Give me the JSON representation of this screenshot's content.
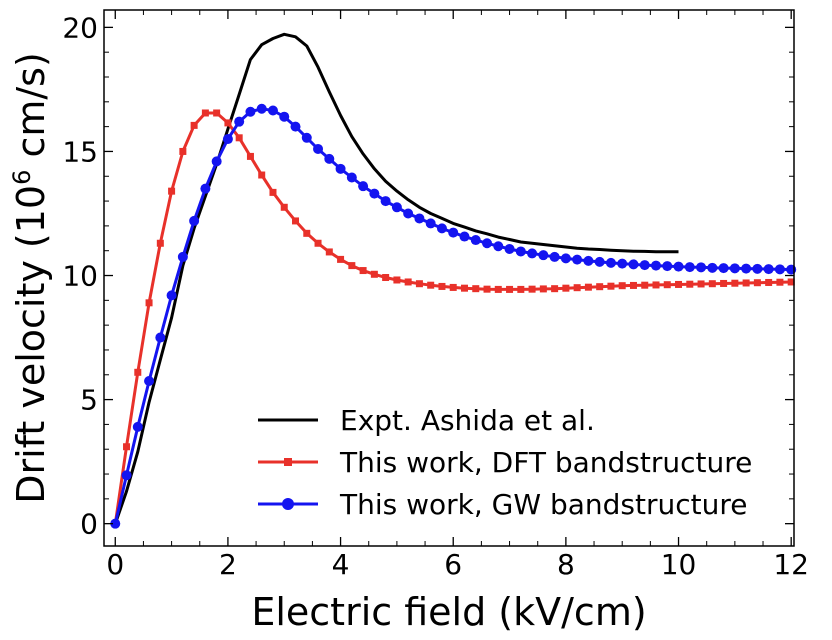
{
  "chart_data": {
    "type": "line",
    "title": "",
    "xlabel": "Electric field (kV/cm)",
    "ylabel_main": "Drift velocity (10",
    "ylabel_sup": "6",
    "ylabel_tail": " cm/s)",
    "xlim": [
      -0.2,
      12.05
    ],
    "ylim": [
      -0.9,
      20.7
    ],
    "xticks": [
      0,
      2,
      4,
      6,
      8,
      10,
      12
    ],
    "yticks": [
      0,
      5,
      10,
      15,
      20
    ],
    "grid": false,
    "legend_position": "lower-right",
    "series": [
      {
        "name": "Expt. Ashida et al.",
        "color": "#000000",
        "marker": "none",
        "x": [
          0,
          0.2,
          0.4,
          0.6,
          0.8,
          1.0,
          1.2,
          1.4,
          1.6,
          1.8,
          2.0,
          2.2,
          2.4,
          2.6,
          2.8,
          3.0,
          3.2,
          3.4,
          3.6,
          3.8,
          4.0,
          4.2,
          4.4,
          4.6,
          4.8,
          5.0,
          5.2,
          5.4,
          5.6,
          5.8,
          6.0,
          6.2,
          6.4,
          6.6,
          6.8,
          7.0,
          7.2,
          7.4,
          7.6,
          7.8,
          8.0,
          8.2,
          8.4,
          8.6,
          8.8,
          9.0,
          9.2,
          9.4,
          9.6,
          9.8,
          10.0
        ],
        "y": [
          0,
          1.3,
          2.9,
          4.9,
          6.6,
          8.3,
          10.4,
          11.9,
          13.2,
          14.5,
          15.9,
          17.3,
          18.7,
          19.3,
          19.55,
          19.72,
          19.62,
          19.25,
          18.4,
          17.4,
          16.45,
          15.6,
          14.9,
          14.3,
          13.8,
          13.4,
          13.05,
          12.75,
          12.5,
          12.3,
          12.1,
          11.95,
          11.8,
          11.68,
          11.55,
          11.45,
          11.35,
          11.3,
          11.25,
          11.2,
          11.15,
          11.1,
          11.07,
          11.05,
          11.02,
          11.0,
          10.98,
          10.97,
          10.96,
          10.96,
          10.96
        ]
      },
      {
        "name": "This work, DFT bandstructure",
        "color": "#e8312a",
        "marker": "square",
        "x": [
          0,
          0.2,
          0.4,
          0.6,
          0.8,
          1.0,
          1.2,
          1.4,
          1.6,
          1.8,
          2.0,
          2.2,
          2.4,
          2.6,
          2.8,
          3.0,
          3.2,
          3.4,
          3.6,
          3.8,
          4.0,
          4.2,
          4.4,
          4.6,
          4.8,
          5.0,
          5.2,
          5.4,
          5.6,
          5.8,
          6.0,
          6.2,
          6.4,
          6.6,
          6.8,
          7.0,
          7.2,
          7.4,
          7.6,
          7.8,
          8.0,
          8.2,
          8.4,
          8.6,
          8.8,
          9.0,
          9.2,
          9.4,
          9.6,
          9.8,
          10.0,
          10.2,
          10.4,
          10.6,
          10.8,
          11.0,
          11.2,
          11.4,
          11.6,
          11.8,
          12.0
        ],
        "y": [
          0,
          3.1,
          6.1,
          8.9,
          11.3,
          13.4,
          15.0,
          16.05,
          16.55,
          16.55,
          16.15,
          15.55,
          14.8,
          14.05,
          13.35,
          12.75,
          12.2,
          11.7,
          11.3,
          10.95,
          10.65,
          10.4,
          10.2,
          10.05,
          9.92,
          9.82,
          9.74,
          9.67,
          9.61,
          9.56,
          9.52,
          9.49,
          9.47,
          9.45,
          9.44,
          9.44,
          9.44,
          9.45,
          9.46,
          9.47,
          9.49,
          9.51,
          9.53,
          9.55,
          9.57,
          9.59,
          9.6,
          9.61,
          9.62,
          9.63,
          9.64,
          9.65,
          9.66,
          9.67,
          9.68,
          9.69,
          9.7,
          9.71,
          9.72,
          9.73,
          9.74
        ]
      },
      {
        "name": "This work, GW bandstructure",
        "color": "#1414f0",
        "marker": "circle",
        "x": [
          0,
          0.2,
          0.4,
          0.6,
          0.8,
          1.0,
          1.2,
          1.4,
          1.6,
          1.8,
          2.0,
          2.2,
          2.4,
          2.6,
          2.8,
          3.0,
          3.2,
          3.4,
          3.6,
          3.8,
          4.0,
          4.2,
          4.4,
          4.6,
          4.8,
          5.0,
          5.2,
          5.4,
          5.6,
          5.8,
          6.0,
          6.2,
          6.4,
          6.6,
          6.8,
          7.0,
          7.2,
          7.4,
          7.6,
          7.8,
          8.0,
          8.2,
          8.4,
          8.6,
          8.8,
          9.0,
          9.2,
          9.4,
          9.6,
          9.8,
          10.0,
          10.2,
          10.4,
          10.6,
          10.8,
          11.0,
          11.2,
          11.4,
          11.6,
          11.8,
          12.0
        ],
        "y": [
          0,
          1.95,
          3.9,
          5.75,
          7.5,
          9.2,
          10.75,
          12.2,
          13.5,
          14.6,
          15.5,
          16.2,
          16.6,
          16.72,
          16.65,
          16.4,
          16.0,
          15.55,
          15.1,
          14.7,
          14.3,
          13.95,
          13.6,
          13.3,
          13.0,
          12.75,
          12.5,
          12.3,
          12.1,
          11.9,
          11.73,
          11.57,
          11.43,
          11.3,
          11.18,
          11.07,
          10.97,
          10.89,
          10.82,
          10.75,
          10.69,
          10.64,
          10.59,
          10.55,
          10.51,
          10.48,
          10.45,
          10.42,
          10.4,
          10.38,
          10.36,
          10.34,
          10.33,
          10.31,
          10.3,
          10.29,
          10.28,
          10.27,
          10.26,
          10.25,
          10.24
        ]
      }
    ]
  }
}
